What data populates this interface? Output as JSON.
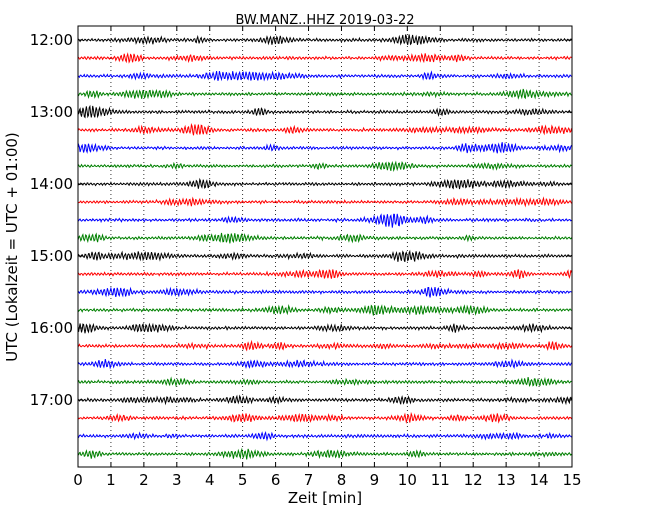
{
  "chart_data": {
    "type": "line",
    "title": "BW.MANZ..HHZ 2019-03-22",
    "xlabel": "Zeit  [min]",
    "ylabel": "UTC (Lokalzeit = UTC + 01:00)",
    "xlim": [
      0,
      15
    ],
    "x_ticks": [
      "0",
      "1",
      "2",
      "3",
      "4",
      "5",
      "6",
      "7",
      "8",
      "9",
      "10",
      "11",
      "12",
      "13",
      "14",
      "15"
    ],
    "y_ticks": [
      "12:00",
      "13:00",
      "14:00",
      "15:00",
      "16:00",
      "17:00"
    ],
    "grid": "vertical dotted lines at each minute",
    "trace_colors": [
      "#000000",
      "#ff0000",
      "#0000ff",
      "#008000"
    ],
    "trace_start_times": [
      "12:00",
      "12:15",
      "12:30",
      "12:45",
      "13:00",
      "13:15",
      "13:30",
      "13:45",
      "14:00",
      "14:15",
      "14:30",
      "14:45",
      "15:00",
      "15:15",
      "15:30",
      "15:45",
      "16:00",
      "16:15",
      "16:30",
      "16:45",
      "17:00",
      "17:15",
      "17:30",
      "17:45"
    ],
    "trace_duration_min": 15
  }
}
